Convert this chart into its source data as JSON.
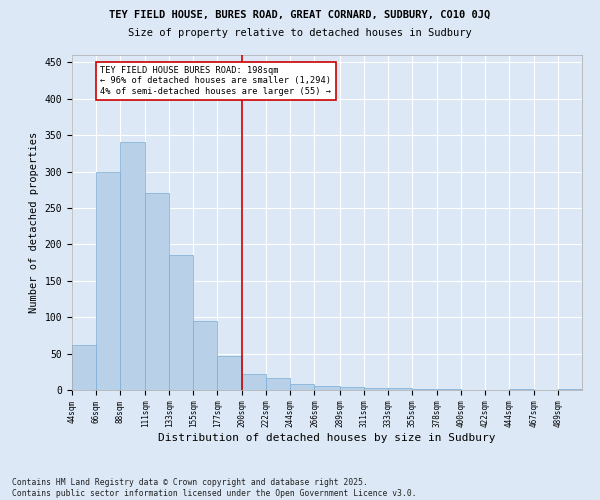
{
  "title1": "TEY FIELD HOUSE, BURES ROAD, GREAT CORNARD, SUDBURY, CO10 0JQ",
  "title2": "Size of property relative to detached houses in Sudbury",
  "xlabel": "Distribution of detached houses by size in Sudbury",
  "ylabel": "Number of detached properties",
  "bar_color": "#b8d0e8",
  "bar_edge_color": "#7aadd4",
  "vline_x": 200,
  "vline_color": "#cc0000",
  "annotation_lines": [
    "TEY FIELD HOUSE BURES ROAD: 198sqm",
    "← 96% of detached houses are smaller (1,294)",
    "4% of semi-detached houses are larger (55) →"
  ],
  "bins": [
    44,
    66,
    88,
    111,
    133,
    155,
    177,
    200,
    222,
    244,
    266,
    289,
    311,
    333,
    355,
    378,
    400,
    422,
    444,
    467,
    489
  ],
  "counts": [
    62,
    300,
    340,
    270,
    185,
    95,
    47,
    22,
    16,
    8,
    6,
    4,
    3,
    3,
    2,
    2,
    0,
    0,
    1,
    0,
    1
  ],
  "background_color": "#dce8f5",
  "plot_bg_color": "#dce8f5",
  "footer": "Contains HM Land Registry data © Crown copyright and database right 2025.\nContains public sector information licensed under the Open Government Licence v3.0.",
  "ylim": [
    0,
    460
  ],
  "figsize": [
    6.0,
    5.0
  ],
  "dpi": 100
}
